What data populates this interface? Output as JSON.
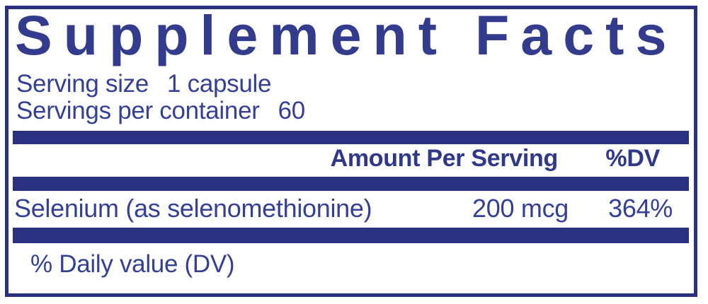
{
  "supplement_label": {
    "title": "Supplement Facts",
    "serving_size": {
      "label": "Serving size",
      "value": "1 capsule"
    },
    "servings_per_container": {
      "label": "Servings per container",
      "value": "60"
    },
    "columns": {
      "amount": "Amount Per Serving",
      "dv": "%DV"
    },
    "ingredients": [
      {
        "name": "Selenium (as selenomethionine)",
        "amount": "200 mcg",
        "dv": "364%"
      }
    ],
    "footnote": "% Daily value (DV)",
    "colors": {
      "navy_bars_border": "#2A3180",
      "title_text": "#333B8C",
      "body_text": "#344095"
    }
  }
}
